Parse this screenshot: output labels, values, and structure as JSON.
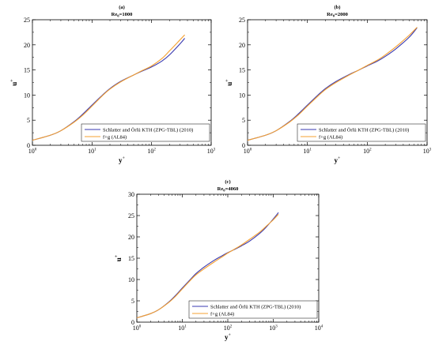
{
  "chart_data": [
    {
      "type": "line",
      "panel_tag": "(a)",
      "title": "Re",
      "title_sub": "θ",
      "title_rest": "=1000",
      "xlabel": "y",
      "xlabel_sup": "+",
      "ylabel": "u",
      "ylabel_sup": "+",
      "xscale": "log",
      "xlim": [
        1,
        1000
      ],
      "ylim": [
        0,
        25
      ],
      "x_ticks": [
        {
          "value": 1,
          "base": "10",
          "exp": "0"
        },
        {
          "value": 10,
          "base": "10",
          "exp": "1"
        },
        {
          "value": 100,
          "base": "10",
          "exp": "2"
        },
        {
          "value": 1000,
          "base": "10",
          "exp": "3"
        }
      ],
      "y_ticks": [
        0,
        5,
        10,
        15,
        20,
        25
      ],
      "legend_position": "bottom-right",
      "grid": false,
      "series": [
        {
          "name": "Schlatter and Örlü KTH (ZPG-TBL) (2010)",
          "color": "#3a3ab0",
          "x": [
            1,
            2,
            3,
            5,
            7,
            10,
            15,
            20,
            30,
            50,
            70,
            100,
            150,
            200,
            300,
            360
          ],
          "y": [
            1.0,
            2.0,
            2.9,
            4.7,
            6.2,
            8.0,
            10.0,
            11.3,
            12.7,
            14.0,
            14.8,
            15.6,
            16.8,
            18.0,
            20.2,
            21.3
          ]
        },
        {
          "name": "f+g (AL84)",
          "color": "#f5a030",
          "x": [
            1,
            2,
            3,
            5,
            7,
            10,
            15,
            20,
            30,
            50,
            70,
            100,
            150,
            200,
            300,
            360
          ],
          "y": [
            1.0,
            2.0,
            2.9,
            4.6,
            6.0,
            7.8,
            9.9,
            11.2,
            12.6,
            14.0,
            14.9,
            15.8,
            17.3,
            18.8,
            21.0,
            22.0
          ]
        }
      ]
    },
    {
      "type": "line",
      "panel_tag": "(b)",
      "title": "Re",
      "title_sub": "θ",
      "title_rest": "=2000",
      "xlabel": "y",
      "xlabel_sup": "+",
      "ylabel": "u",
      "ylabel_sup": "+",
      "xscale": "log",
      "xlim": [
        1,
        1000
      ],
      "ylim": [
        0,
        25
      ],
      "x_ticks": [
        {
          "value": 1,
          "base": "10",
          "exp": "0"
        },
        {
          "value": 10,
          "base": "10",
          "exp": "1"
        },
        {
          "value": 100,
          "base": "10",
          "exp": "2"
        },
        {
          "value": 1000,
          "base": "10",
          "exp": "3"
        }
      ],
      "y_ticks": [
        0,
        5,
        10,
        15,
        20,
        25
      ],
      "legend_position": "bottom-right",
      "grid": false,
      "series": [
        {
          "name": "Schlatter and Örlü KTH (ZPG-TBL) (2010)",
          "color": "#3a3ab0",
          "x": [
            1,
            2,
            3,
            5,
            7,
            10,
            15,
            20,
            30,
            50,
            70,
            100,
            150,
            200,
            300,
            500,
            680
          ],
          "y": [
            1.0,
            2.0,
            2.9,
            4.7,
            6.2,
            8.0,
            10.0,
            11.3,
            12.7,
            14.1,
            14.9,
            15.8,
            16.8,
            17.7,
            19.2,
            21.5,
            23.4
          ]
        },
        {
          "name": "f+g (AL84)",
          "color": "#f5a030",
          "x": [
            1,
            2,
            3,
            5,
            7,
            10,
            15,
            20,
            30,
            50,
            70,
            100,
            150,
            200,
            300,
            500,
            680
          ],
          "y": [
            1.0,
            2.0,
            2.9,
            4.6,
            6.0,
            7.8,
            9.8,
            11.1,
            12.5,
            14.0,
            14.9,
            15.9,
            17.0,
            18.0,
            19.6,
            21.9,
            23.5
          ]
        }
      ]
    },
    {
      "type": "line",
      "panel_tag": "(c)",
      "title": "Re",
      "title_sub": "θ",
      "title_rest": "=4060",
      "xlabel": "y",
      "xlabel_sup": "+",
      "ylabel": "u",
      "ylabel_sup": "+",
      "xscale": "log",
      "xlim": [
        1,
        10000
      ],
      "ylim": [
        0,
        30
      ],
      "x_ticks": [
        {
          "value": 1,
          "base": "10",
          "exp": "0"
        },
        {
          "value": 10,
          "base": "10",
          "exp": "1"
        },
        {
          "value": 100,
          "base": "10",
          "exp": "2"
        },
        {
          "value": 1000,
          "base": "10",
          "exp": "3"
        },
        {
          "value": 10000,
          "base": "10",
          "exp": "4"
        }
      ],
      "y_ticks": [
        0,
        5,
        10,
        15,
        20,
        25,
        30
      ],
      "legend_position": "bottom-right",
      "grid": false,
      "series": [
        {
          "name": "Schlatter and Örlü KTH (ZPG-TBL) (2010)",
          "color": "#3a3ab0",
          "x": [
            1,
            2,
            3,
            5,
            7,
            10,
            15,
            20,
            30,
            50,
            70,
            100,
            150,
            200,
            300,
            500,
            700,
            1000,
            1300
          ],
          "y": [
            1.0,
            2.0,
            2.9,
            4.7,
            6.2,
            8.0,
            10.0,
            11.4,
            12.9,
            14.5,
            15.4,
            16.3,
            17.2,
            17.9,
            19.0,
            20.8,
            22.3,
            24.2,
            25.7
          ]
        },
        {
          "name": "f+g (AL84)",
          "color": "#f5a030",
          "x": [
            1,
            2,
            3,
            5,
            7,
            10,
            15,
            20,
            30,
            50,
            70,
            100,
            150,
            200,
            300,
            500,
            700,
            1000,
            1300
          ],
          "y": [
            1.0,
            2.0,
            2.9,
            4.6,
            6.0,
            7.8,
            9.8,
            11.1,
            12.5,
            14.1,
            15.1,
            16.2,
            17.3,
            18.1,
            19.4,
            21.1,
            22.5,
            24.0,
            25.3
          ]
        }
      ]
    }
  ]
}
